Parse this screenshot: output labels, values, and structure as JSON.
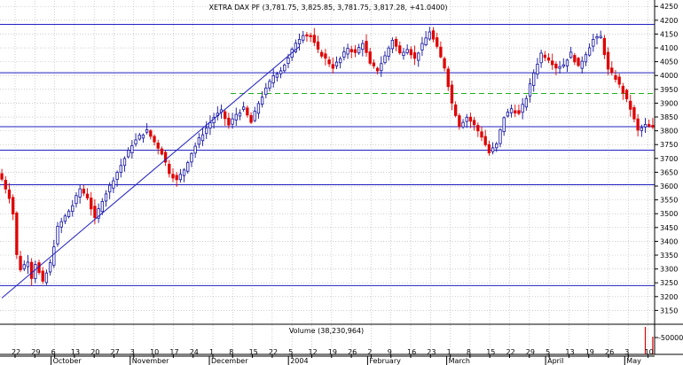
{
  "chart_data": {
    "type": "candlestick",
    "title": "XETRA DAX PF (3,781.75, 3,825.85, 3,781.75, 3,817.28, +41.0400)",
    "volume_label": "Volume (38,230,964)",
    "ylim": [
      3100,
      4270
    ],
    "y_ticks": [
      3150,
      3200,
      3250,
      3300,
      3350,
      3400,
      3450,
      3500,
      3550,
      3600,
      3650,
      3700,
      3750,
      3800,
      3850,
      3900,
      3950,
      4000,
      4050,
      4100,
      4150,
      4200,
      4250
    ],
    "volume_ticks": [
      "-50000"
    ],
    "x_day_labels": [
      "22",
      "29",
      "6",
      "13",
      "20",
      "27",
      "3",
      "10",
      "17",
      "24",
      "1",
      "8",
      "15",
      "22",
      "5",
      "12",
      "19",
      "26",
      "2",
      "9",
      "16",
      "23",
      "1",
      "8",
      "15",
      "22",
      "29",
      "5",
      "13",
      "19",
      "26",
      "3",
      "10"
    ],
    "x_month_labels": [
      "October",
      "November",
      "December",
      "2004",
      "February",
      "March",
      "April",
      "May"
    ],
    "horizontal_levels": [
      4185,
      4010,
      3815,
      3730,
      3605,
      3240
    ],
    "dashed_levels": [
      3935
    ],
    "trend_line": {
      "start": {
        "day": 0,
        "value": 3195
      },
      "end": {
        "day": 80,
        "value": 4105
      }
    },
    "close_path": [
      [
        0,
        3625
      ],
      [
        2,
        3560
      ],
      [
        3,
        3500
      ],
      [
        4,
        3350
      ],
      [
        5,
        3300
      ],
      [
        7,
        3330
      ],
      [
        8,
        3270
      ],
      [
        9,
        3320
      ],
      [
        11,
        3250
      ],
      [
        13,
        3320
      ],
      [
        15,
        3450
      ],
      [
        17,
        3490
      ],
      [
        19,
        3530
      ],
      [
        21,
        3590
      ],
      [
        23,
        3560
      ],
      [
        25,
        3480
      ],
      [
        27,
        3550
      ],
      [
        29,
        3600
      ],
      [
        31,
        3650
      ],
      [
        33,
        3700
      ],
      [
        35,
        3750
      ],
      [
        37,
        3780
      ],
      [
        39,
        3800
      ],
      [
        41,
        3760
      ],
      [
        43,
        3720
      ],
      [
        45,
        3650
      ],
      [
        47,
        3620
      ],
      [
        49,
        3660
      ],
      [
        51,
        3720
      ],
      [
        53,
        3770
      ],
      [
        55,
        3810
      ],
      [
        57,
        3850
      ],
      [
        59,
        3870
      ],
      [
        61,
        3820
      ],
      [
        63,
        3860
      ],
      [
        65,
        3880
      ],
      [
        67,
        3830
      ],
      [
        69,
        3900
      ],
      [
        71,
        3950
      ],
      [
        73,
        4000
      ],
      [
        75,
        4020
      ],
      [
        77,
        4060
      ],
      [
        79,
        4120
      ],
      [
        81,
        4150
      ],
      [
        83,
        4140
      ],
      [
        85,
        4090
      ],
      [
        87,
        4060
      ],
      [
        89,
        4030
      ],
      [
        91,
        4060
      ],
      [
        93,
        4100
      ],
      [
        95,
        4080
      ],
      [
        97,
        4120
      ],
      [
        99,
        4040
      ],
      [
        101,
        4020
      ],
      [
        103,
        4070
      ],
      [
        105,
        4130
      ],
      [
        107,
        4080
      ],
      [
        109,
        4100
      ],
      [
        111,
        4060
      ],
      [
        113,
        4110
      ],
      [
        115,
        4160
      ],
      [
        117,
        4100
      ],
      [
        119,
        4030
      ],
      [
        121,
        3900
      ],
      [
        123,
        3820
      ],
      [
        125,
        3850
      ],
      [
        127,
        3820
      ],
      [
        129,
        3780
      ],
      [
        131,
        3720
      ],
      [
        133,
        3750
      ],
      [
        135,
        3850
      ],
      [
        137,
        3880
      ],
      [
        139,
        3860
      ],
      [
        141,
        3920
      ],
      [
        143,
        4010
      ],
      [
        145,
        4080
      ],
      [
        147,
        4060
      ],
      [
        149,
        4030
      ],
      [
        151,
        4040
      ],
      [
        153,
        4080
      ],
      [
        155,
        4030
      ],
      [
        157,
        4080
      ],
      [
        159,
        4130
      ],
      [
        161,
        4140
      ],
      [
        163,
        4020
      ],
      [
        165,
        3990
      ],
      [
        167,
        3940
      ],
      [
        169,
        3880
      ],
      [
        171,
        3800
      ],
      [
        173,
        3820
      ],
      [
        175,
        3810
      ]
    ]
  }
}
